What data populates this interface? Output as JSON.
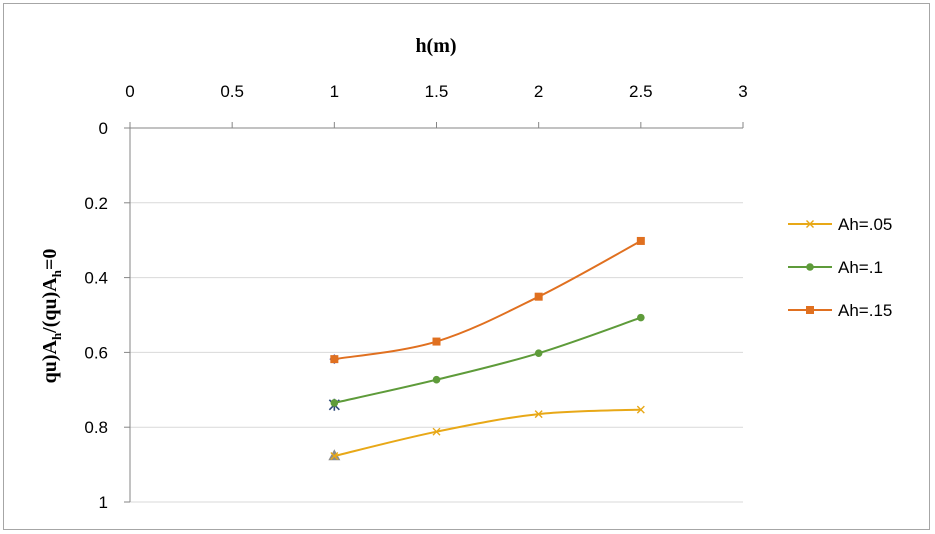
{
  "chart_data": {
    "type": "line",
    "title": "",
    "xlabel": "h(m)",
    "ylabel": "qu)Ah/(qu)Ah=0",
    "ylabel_parts": {
      "a": "qu)A",
      "a_sub": "h",
      "b": "/(qu)A",
      "b_sub": "h",
      "c": "=0"
    },
    "x_axis_position": "top",
    "y_axis_reversed": true,
    "xlim": [
      0,
      3
    ],
    "ylim": [
      0,
      1
    ],
    "x_ticks": [
      "0",
      "0.5",
      "1",
      "1.5",
      "2",
      "2.5",
      "3"
    ],
    "y_ticks": [
      "0",
      "0.2",
      "0.4",
      "0.6",
      "0.8",
      "1"
    ],
    "grid": "horizontal",
    "legend_position": "right",
    "series": [
      {
        "name": "Ah=.05",
        "color": "#E8A817",
        "marker": "x",
        "x": [
          1,
          1.5,
          2,
          2.5
        ],
        "y": [
          0.877,
          0.812,
          0.765,
          0.753
        ]
      },
      {
        "name": "Ah=.1",
        "color": "#5E9B3A",
        "marker": "circle",
        "x": [
          1,
          1.5,
          2,
          2.5
        ],
        "y": [
          0.735,
          0.673,
          0.602,
          0.507
        ]
      },
      {
        "name": "Ah=.15",
        "color": "#E07020",
        "marker": "square",
        "x": [
          1,
          1.5,
          2,
          2.5
        ],
        "y": [
          0.618,
          0.571,
          0.451,
          0.302
        ]
      }
    ],
    "extra_markers": [
      {
        "marker": "triangle",
        "color": "#8C8C8C",
        "x": 1,
        "y": 0.875
      },
      {
        "marker": "star",
        "color": "#2E4A7A",
        "x": 1,
        "y": 0.74
      },
      {
        "marker": "diamond",
        "color": "#6B6BB0",
        "x": 1,
        "y": 0.618
      }
    ]
  }
}
